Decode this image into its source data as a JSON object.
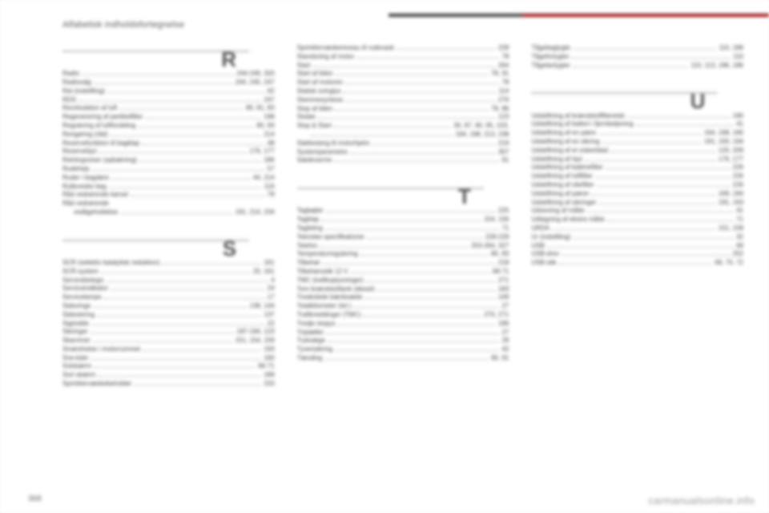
{
  "header": "Alfabetisk indholdsfortegnelse",
  "page_number": "368",
  "watermark": "carmanualsonline.info",
  "colors": {
    "rule": "#bdbdbd",
    "text": "#3a3a3a",
    "accent": "#9a0e0e",
    "topbar_dark": "#3b3b3b",
    "watermark": "#9a9a9a"
  },
  "columns": [
    {
      "groups": [
        {
          "letter": "R",
          "entries": [
            {
              "label": "Radio",
              "pages": "244-249, 320"
            },
            {
              "label": "Radiovalg",
              "pages": "244, 245, 247"
            },
            {
              "label": "Rat (indstilling)",
              "pages": "62"
            },
            {
              "label": "RDS",
              "pages": "247"
            },
            {
              "label": "Recirkulation af luft",
              "pages": "80, 81, 83"
            },
            {
              "label": "Regenerering af partikelfilter",
              "pages": "198"
            },
            {
              "label": "Regulering af luftfordeling",
              "pages": "80, 83"
            },
            {
              "label": "Rengøring (råd)",
              "pages": "214"
            },
            {
              "label": "Reservefunktion til bagklap",
              "pages": "48"
            },
            {
              "label": "Reservehjul",
              "pages": "176, 177"
            },
            {
              "label": "Retningsviser (opbakning)",
              "pages": "186"
            },
            {
              "label": "Rudehejs",
              "pages": "57"
            },
            {
              "label": "Ruder i bagdøre",
              "pages": "44, 214"
            },
            {
              "label": "Rulleveske bag",
              "pages": "116"
            },
            {
              "label": "Råd vedrørende kørsel",
              "pages": "78"
            },
            {
              "label": "Råd vedrørende",
              "pages": "",
              "nopages": true
            },
            {
              "label": "vedligeholdelse",
              "pages": "191, 214, 234",
              "cont": true
            }
          ]
        },
        {
          "letter": "S",
          "entries": [
            {
              "label": "SCR (selektiv katalytisk reduktion)",
              "pages": "161"
            },
            {
              "label": "SCR-system",
              "pages": "20, 161"
            },
            {
              "label": "Servicebetegn.",
              "pages": "4"
            },
            {
              "label": "Serviceindikator",
              "pages": "24"
            },
            {
              "label": "Servicelampe",
              "pages": "17"
            },
            {
              "label": "Sidevinge",
              "pages": "138, 144"
            },
            {
              "label": "Sidestering",
              "pages": "137"
            },
            {
              "label": "Sigtvidde",
              "pages": "22"
            },
            {
              "label": "Sikringer",
              "pages": "187-194, 123"
            },
            {
              "label": "Skarnmer",
              "pages": "151, 154, 159"
            },
            {
              "label": "Smørehelse i motorrummet",
              "pages": "193"
            },
            {
              "label": "Sne-kder",
              "pages": "160"
            },
            {
              "label": "Solskærm",
              "pages": "66-71"
            },
            {
              "label": "Sort skærm",
              "pages": "189"
            },
            {
              "label": "Sprinklervæskebeholder",
              "pages": "233"
            }
          ]
        }
      ]
    },
    {
      "groups": [
        {
          "letter": "",
          "entries": [
            {
              "label": "Sprinklervæskeniveau til rudevask",
              "pages": "228"
            },
            {
              "label": "Standsning af motor",
              "pages": "78"
            },
            {
              "label": "Start",
              "pages": "264"
            },
            {
              "label": "Start af bilen",
              "pages": "78, 91"
            },
            {
              "label": "Start af motoren",
              "pages": "78"
            },
            {
              "label": "Statisk svinglys",
              "pages": "114"
            },
            {
              "label": "Stemmesyntese",
              "pages": "276"
            },
            {
              "label": "Stop af bilen",
              "pages": "78, 86"
            },
            {
              "label": "Stoløe",
              "pages": "123"
            },
            {
              "label": "Stop & Start",
              "pages": "30, 87, 90, 95, 103,"
            },
            {
              "label": "",
              "pages": "194, 198, 213, 238",
              "cont": true
            },
            {
              "label": "Støttestang til motorhjelm",
              "pages": "219"
            },
            {
              "label": "Systemparametre",
              "pages": "307"
            },
            {
              "label": "Sædevarme",
              "pages": "91"
            }
          ]
        },
        {
          "letter": "T",
          "entries": [
            {
              "label": "Tagbøjler",
              "pages": "225"
            },
            {
              "label": "Tagklap",
              "pages": "154, 156"
            },
            {
              "label": "Tagleting",
              "pages": "71"
            },
            {
              "label": "Tekniske specifikationer",
              "pages": "228-229"
            },
            {
              "label": "Telefon",
              "pages": "253-264, 327"
            },
            {
              "label": "Temperaturregulering",
              "pages": "80, 83"
            },
            {
              "label": "Tilbehør",
              "pages": "218"
            },
            {
              "label": "Tilbehørsstik 12 V",
              "pages": "68-71"
            },
            {
              "label": "TMC (trafikoplysninger)",
              "pages": "271"
            },
            {
              "label": "Tom brændstoftank (diesel)",
              "pages": "183"
            },
            {
              "label": "Treakslede bænksæde",
              "pages": "149"
            },
            {
              "label": "Totalkilometer (tel.)",
              "pages": "27"
            },
            {
              "label": "Trafikmeldinger (TMC)",
              "pages": "270, 271"
            },
            {
              "label": "Tredje stopys",
              "pages": "196"
            },
            {
              "label": "Triptæller",
              "pages": "27"
            },
            {
              "label": "Tryksæge",
              "pages": "29"
            },
            {
              "label": "Tyverisikring",
              "pages": "42"
            },
            {
              "label": "Tænding",
              "pages": "90, 91"
            }
          ]
        }
      ]
    },
    {
      "groups": [
        {
          "letter": "",
          "entries": [
            {
              "label": "Tågebaglygte",
              "pages": "110, 186"
            },
            {
              "label": "Tågeforlygter",
              "pages": "110"
            },
            {
              "label": "Tågelanlygter",
              "pages": "110, 113, 186, 186"
            }
          ]
        },
        {
          "letter": "U",
          "entries": [
            {
              "label": "Udskiftning af brændstoffilterelsb",
              "pages": "190"
            },
            {
              "label": "Udskiftning af batteri i fjernbetjening",
              "pages": "41"
            },
            {
              "label": "Udskiftning af en pære",
              "pages": "164, 168, 180"
            },
            {
              "label": "Udskiftning af en sikring",
              "pages": "191, 193, 194"
            },
            {
              "label": "Udskiftning af et viskerblad",
              "pages": "120, 209"
            },
            {
              "label": "Udskiftning af hjul",
              "pages": "176, 177"
            },
            {
              "label": "Udskiftning af kabinefilter",
              "pages": "226"
            },
            {
              "label": "Udskiftning af luftfilter",
              "pages": "226"
            },
            {
              "label": "Udskiftning af oliefilter",
              "pages": "226"
            },
            {
              "label": "Udskiftning af pærer",
              "pages": "169, 184"
            },
            {
              "label": "Udskiftning af sikringer",
              "pages": "191, 193"
            },
            {
              "label": "Udsivning af måtte",
              "pages": "41"
            },
            {
              "label": "Udtagning af ekstra måtte",
              "pages": "71"
            },
            {
              "label": "URDA",
              "pages": "151, 158"
            },
            {
              "label": "Ur (indstilling)",
              "pages": "32"
            },
            {
              "label": "USB",
              "pages": "69"
            },
            {
              "label": "USB-drev",
              "pages": "252"
            },
            {
              "label": "USB-stik",
              "pages": "69, 70, 72"
            }
          ]
        }
      ]
    }
  ]
}
